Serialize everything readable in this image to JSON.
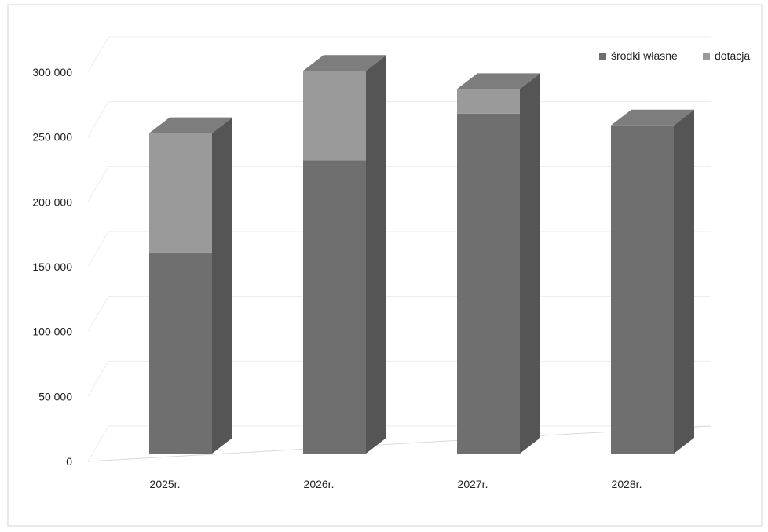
{
  "chart_data": {
    "type": "bar",
    "stacked": true,
    "three_d": true,
    "categories": [
      "2025r.",
      "2026r.",
      "2027r.",
      "2028r."
    ],
    "series": [
      {
        "name": "środki własne",
        "values": [
          155000,
          226000,
          262000,
          253000
        ]
      },
      {
        "name": "dotacja",
        "values": [
          92000,
          69000,
          19000,
          0
        ]
      }
    ],
    "ylim": [
      0,
      300000
    ],
    "yticks": [
      "0",
      "50 000",
      "100 000",
      "150 000",
      "200 000",
      "250 000",
      "300 000"
    ],
    "ytick_values": [
      0,
      50000,
      100000,
      150000,
      200000,
      250000,
      300000
    ],
    "grid": true,
    "legend": "top-right",
    "colors": {
      "own": "#6f6f6f",
      "grant": "#9a9a9a",
      "top": "#7d7d7d",
      "side": "#555555"
    },
    "title": "",
    "xlabel": "",
    "ylabel": ""
  }
}
